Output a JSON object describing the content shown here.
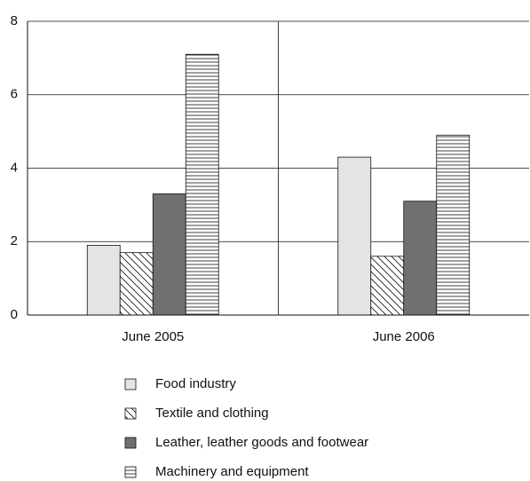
{
  "chart_data": {
    "type": "bar",
    "categories": [
      "June 2005",
      "June 2006"
    ],
    "series": [
      {
        "name": "Food industry",
        "color": "#e4e4e4",
        "pattern": "solid",
        "values": [
          1.9,
          4.3
        ]
      },
      {
        "name": "Textile and clothing",
        "color": "#ffffff",
        "pattern": "diagonal",
        "values": [
          1.7,
          1.6
        ]
      },
      {
        "name": "Leather, leather goods and footwear",
        "color": "#707070",
        "pattern": "solid",
        "values": [
          3.3,
          3.1
        ]
      },
      {
        "name": "Machinery and equipment",
        "color": "#ffffff",
        "pattern": "horizontal",
        "values": [
          7.1,
          4.9
        ]
      }
    ],
    "ylim": [
      0,
      8
    ],
    "yticks": [
      0,
      2,
      4,
      6,
      8
    ],
    "grid": true
  }
}
